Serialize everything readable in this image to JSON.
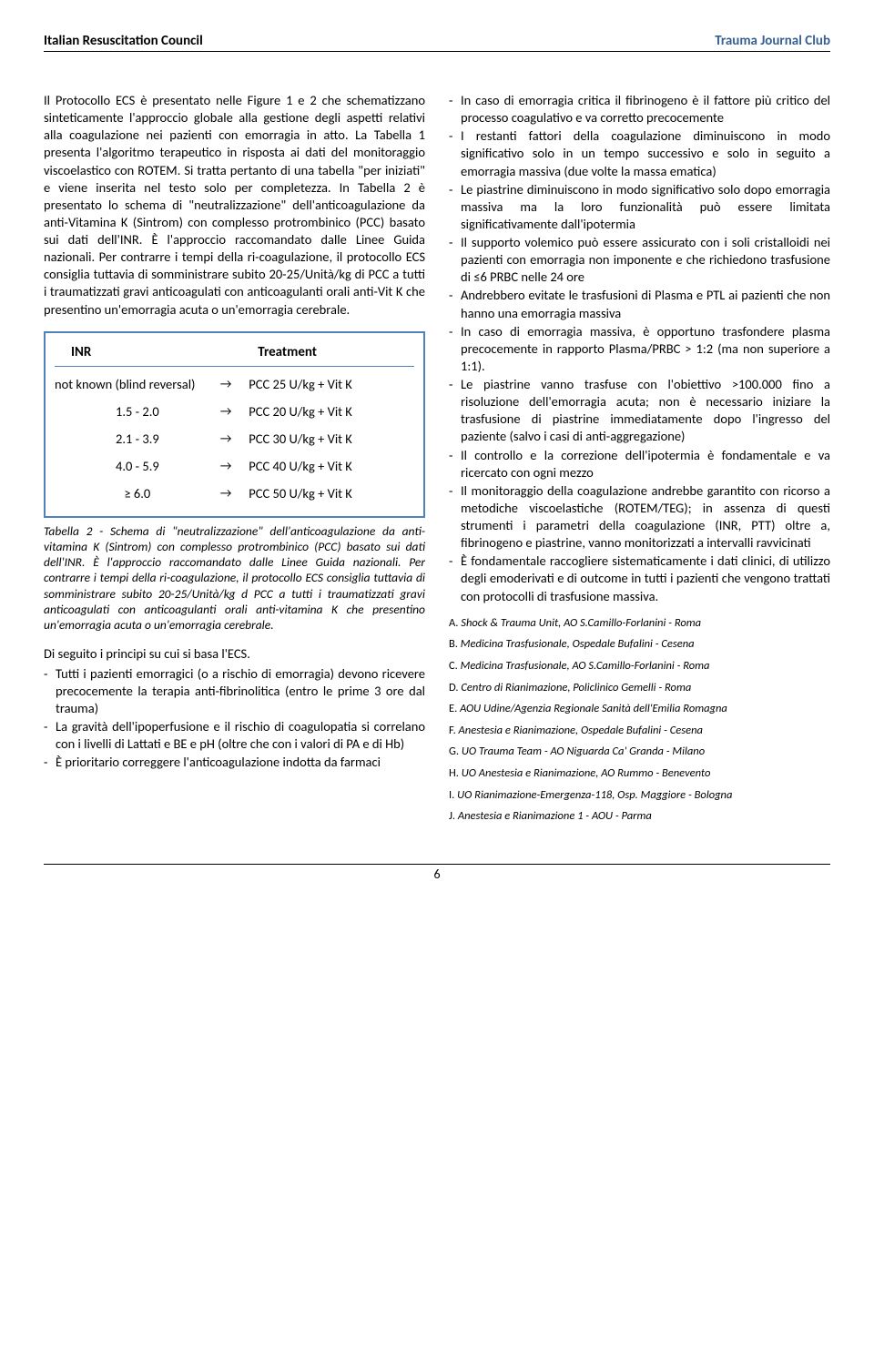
{
  "header": {
    "left": "Italian Resuscitation Council",
    "right": "Trauma Journal Club"
  },
  "left_col": {
    "para1": "Il Protocollo ECS è presentato nelle Figure 1 e 2 che schematizzano sinteticamente l'approccio globale alla gestione degli aspetti relativi alla coagulazione nei pazienti con emorragia in atto. La Tabella 1 presenta l'algoritmo terapeutico in risposta ai dati del monitoraggio viscoelastico con ROTEM. Si tratta pertanto di una tabella \"per iniziati\" e viene inserita nel testo solo per completezza. In Tabella 2 è presentato lo schema di \"neutralizzazione\" dell'anticoagulazione da anti-Vitamina K (Sintrom) con complesso protrombinico (PCC) basato sui dati dell'INR. È l'approccio raccomandato dalle Linee Guida nazionali. Per contrarre i tempi della ri-coagulazione, il protocollo ECS consiglia tuttavia di somministrare subito 20-25/Unità/kg di PCC a tutti i traumatizzati gravi anticoagulati con anticoagulanti orali anti-Vit K che presentino un'emorragia acuta o un'emorragia cerebrale.",
    "table": {
      "head_c1": "INR",
      "head_c3": "Treatment",
      "arrow": "→",
      "rows": [
        {
          "c1": "not known (blind reversal)",
          "c3": "PCC 25 U/kg + Vit K"
        },
        {
          "c1": "1.5 - 2.0",
          "c3": "PCC 20 U/kg + Vit K"
        },
        {
          "c1": "2.1 - 3.9",
          "c3": "PCC 30 U/kg + Vit K"
        },
        {
          "c1": "4.0 - 5.9",
          "c3": "PCC 40 U/kg + Vit K"
        },
        {
          "c1": "≥ 6.0",
          "c3": "PCC 50 U/kg + Vit K"
        }
      ]
    },
    "caption": "Tabella 2 - Schema di \"neutralizzazione\" dell'anticoagulazione da anti-vitamina K (Sintrom) con complesso protrombinico (PCC) basato sui dati dell'INR. È l'approccio raccomandato dalle Linee Guida nazionali. Per contrarre i tempi della ri-coagulazione, il protocollo ECS consiglia tuttavia di somministrare subito 20-25/Unità/kg d PCC a tutti i traumatizzati gravi anticoagulati con anticoagulanti orali anti-vitamina K che presentino un'emorragia acuta o un'emorragia cerebrale.",
    "lead2": "Di seguito i principi su cui si basa l'ECS.",
    "bullets": [
      "Tutti i pazienti emorragici (o a rischio di emorragia) devono ricevere precocemente la terapia anti-fibrinolitica (entro le prime 3 ore dal trauma)",
      "La gravità dell'ipoperfusione e il rischio di coagulopatia si correlano con i livelli di Lattati e BE e pH (oltre che con i valori di PA e di Hb)",
      "È prioritario correggere l'anticoagulazione indotta da farmaci"
    ]
  },
  "right_col": {
    "bullets": [
      "In caso di emorragia critica il fibrinogeno è il fattore più critico del processo coagulativo e va corretto precocemente",
      "I restanti fattori della coagulazione diminuiscono in modo significativo solo in un tempo successivo e solo in seguito a emorragia massiva (due volte la massa ematica)",
      "Le piastrine diminuiscono in modo significativo solo dopo emorragia massiva ma la loro funzionalità può essere limitata significativamente dall'ipotermia",
      "Il supporto volemico può essere assicurato con i soli cristalloidi nei pazienti con emorragia non imponente e che richiedono trasfusione di ≤6 PRBC nelle 24 ore",
      "Andrebbero evitate le trasfusioni di Plasma e PTL ai pazienti che non hanno una emorragia massiva",
      "In caso di emorragia massiva, è opportuno trasfondere plasma precocemente in rapporto Plasma/PRBC > 1:2 (ma non superiore a 1:1).",
      "Le piastrine vanno trasfuse con l'obiettivo >100.000 fino a risoluzione dell'emorragia acuta; non è necessario iniziare la trasfusione di piastrine immediatamente dopo l'ingresso del paziente (salvo i casi di anti-aggregazione)",
      "Il controllo e la correzione dell'ipotermia è fondamentale e va ricercato con ogni mezzo",
      "Il monitoraggio della coagulazione andrebbe garantito con ricorso a metodiche viscoelastiche (ROTEM/TEG); in assenza di questi strumenti i parametri della coagulazione (INR, PTT) oltre a, fibrinogeno e piastrine, vanno monitorizzati a intervalli ravvicinati",
      "È fondamentale raccogliere sistematicamente i dati clinici, di utilizzo degli emoderivati e di outcome in tutti i pazienti che vengono trattati con protocolli di trasfusione massiva."
    ],
    "refs": [
      {
        "lbl": "A.",
        "txt": "Shock & Trauma Unit, AO S.Camillo-Forlanini - Roma"
      },
      {
        "lbl": "B.",
        "txt": "Medicina Trasfusionale, Ospedale Bufalini - Cesena"
      },
      {
        "lbl": "C.",
        "txt": "Medicina Trasfusionale, AO S.Camillo-Forlanini - Roma"
      },
      {
        "lbl": "D.",
        "txt": "Centro di Rianimazione, Policlinico Gemelli - Roma"
      },
      {
        "lbl": "E.",
        "txt": "AOU Udine/Agenzia Regionale Sanità dell'Emilia Romagna"
      },
      {
        "lbl": "F.",
        "txt": "Anestesia e Rianimazione, Ospedale Bufalini - Cesena"
      },
      {
        "lbl": "G.",
        "txt": "UO Trauma Team - AO Niguarda Ca' Granda - Milano"
      },
      {
        "lbl": "H.",
        "txt": "UO Anestesia e Rianimazione, AO Rummo - Benevento"
      },
      {
        "lbl": "I.",
        "txt": "UO Rianimazione-Emergenza-118, Osp. Maggiore - Bologna"
      },
      {
        "lbl": "J.",
        "txt": "Anestesia e Rianimazione 1 - AOU - Parma"
      }
    ]
  },
  "footer": {
    "page_num": "6"
  }
}
